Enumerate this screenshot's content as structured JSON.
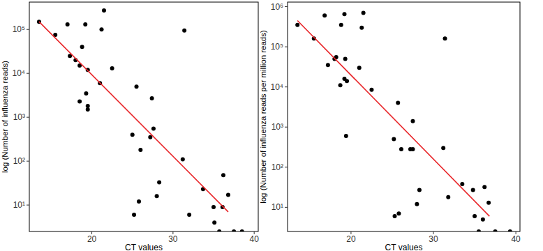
{
  "chart_data": [
    {
      "type": "scatter",
      "x_label": "CT values",
      "y_label": "log (Number of influenza reads)",
      "log": "y",
      "grid": false,
      "xlim": [
        12.3,
        40.5
      ],
      "ylim": [
        2.5,
        420000
      ],
      "xticks": [
        20,
        30,
        40
      ],
      "yticks": [
        {
          "value": 10,
          "label": "10¹"
        },
        {
          "value": 100,
          "label": "10²"
        },
        {
          "value": 1000,
          "label": "10³"
        },
        {
          "value": 10000,
          "label": "10⁴"
        },
        {
          "value": 100000,
          "label": "10⁵"
        }
      ],
      "series": [
        {
          "type": "scatter",
          "marker": "circle",
          "color": "#000000",
          "x": [
            13.5,
            15.5,
            17,
            17.3,
            18,
            18.5,
            18.8,
            18.5,
            19.3,
            19.2,
            19.5,
            19.5,
            19.5,
            21,
            21.2,
            21.5,
            22.5,
            25,
            25.2,
            25.5,
            25.8,
            26,
            27.2,
            27.4,
            27.6,
            28,
            28.3,
            31.2,
            31.4,
            32,
            33.7,
            35,
            35.1,
            35.7,
            36.1,
            36.2,
            36.8,
            37.5,
            38.5
          ],
          "values": [
            150000,
            75000,
            130000,
            25000,
            20000,
            15000,
            40000,
            2300,
            3500,
            130000,
            12000,
            1800,
            1500,
            6000,
            100000,
            270000,
            13000,
            400,
            6,
            5000,
            12,
            180,
            350,
            2700,
            550,
            16,
            33,
            110,
            95000,
            6,
            23,
            9,
            4,
            2.5,
            9,
            48,
            17,
            2.5,
            2.5
          ]
        },
        {
          "type": "line",
          "line_style": "solid",
          "color": "#e8262a",
          "x": [
            13.5,
            36.8
          ],
          "values": [
            150000,
            7
          ]
        }
      ]
    },
    {
      "type": "scatter",
      "x_label": "CT values",
      "y_label": "log (Number of influenza reads per million reads)",
      "log": "y",
      "grid": false,
      "xlim": [
        12.3,
        40.5
      ],
      "ylim": [
        2.5,
        1300000
      ],
      "xticks": [
        20,
        30,
        40
      ],
      "yticks": [
        {
          "value": 10,
          "label": "10¹"
        },
        {
          "value": 100,
          "label": "10²"
        },
        {
          "value": 1000,
          "label": "10³"
        },
        {
          "value": 10000,
          "label": "10⁴"
        },
        {
          "value": 100000,
          "label": "10⁵"
        },
        {
          "value": 1000000,
          "label": "10⁶"
        }
      ],
      "series": [
        {
          "type": "scatter",
          "marker": "circle",
          "color": "#000000",
          "x": [
            13.5,
            15.5,
            16.8,
            17.2,
            18,
            18.2,
            18.7,
            18.8,
            19.2,
            19.2,
            19.5,
            19.3,
            19.4,
            21,
            21.3,
            21.5,
            22.5,
            25.2,
            25.3,
            25.7,
            25.8,
            26.1,
            27.2,
            27.5,
            27.5,
            28,
            28.3,
            31.2,
            31.4,
            31.8,
            33.5,
            34.8,
            35,
            35.5,
            36,
            36.2,
            36.7,
            37.5,
            39.3
          ],
          "values": [
            350000,
            160000,
            600000,
            35000,
            50000,
            55000,
            11000,
            350000,
            650000,
            16000,
            14000,
            50000,
            600,
            30000,
            300000,
            700000,
            8500,
            500,
            6,
            4000,
            7,
            280,
            280,
            1400,
            280,
            12,
            27,
            300,
            160000,
            18,
            38,
            27,
            6,
            2.5,
            5,
            32,
            13,
            2.5,
            2.5
          ]
        },
        {
          "type": "line",
          "line_style": "solid",
          "color": "#e8262a",
          "x": [
            13.5,
            36.8
          ],
          "values": [
            450000,
            6
          ]
        }
      ]
    }
  ]
}
